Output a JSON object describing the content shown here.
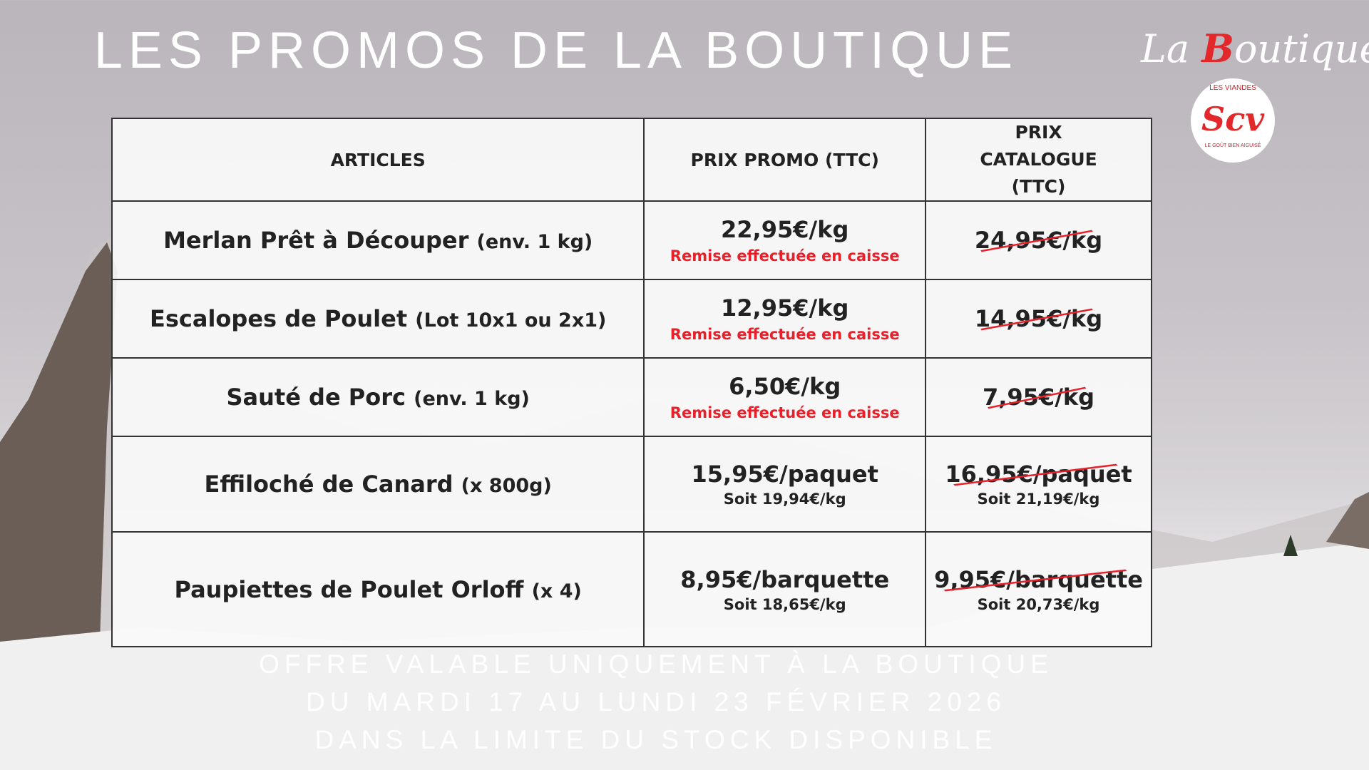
{
  "title": "LES PROMOS DE LA BOUTIQUE",
  "logo": {
    "script_prefix": "La ",
    "script_b": "B",
    "script_rest": "outique",
    "les": "LES",
    "viandes": "VIANDES",
    "brand": "Scv",
    "tagline": "LE GOÛT BIEN AIGUISÉ"
  },
  "table": {
    "headers": [
      "ARTICLES",
      "PRIX PROMO (TTC)",
      "PRIX CATALOGUE (TTC)"
    ],
    "rows": [
      {
        "name": "Merlan Prêt à Découper",
        "detail": "(env. 1 kg)",
        "promo": "22,95€/kg",
        "promo_note": "Remise effectuée en caisse",
        "catalogue": "24,95€/kg",
        "catalogue_note": ""
      },
      {
        "name": "Escalopes de Poulet",
        "detail": "(Lot 10x1 ou 2x1)",
        "promo": "12,95€/kg",
        "promo_note": "Remise effectuée en caisse",
        "catalogue": "14,95€/kg",
        "catalogue_note": ""
      },
      {
        "name": "Sauté de Porc",
        "detail": "(env. 1 kg)",
        "promo": "6,50€/kg",
        "promo_note": "Remise effectuée en caisse",
        "catalogue": "7,95€/kg",
        "catalogue_note": ""
      },
      {
        "name": "Effiloché de Canard",
        "detail": "(x 800g)",
        "promo": "15,95€/paquet",
        "promo_note": "Soit 19,94€/kg",
        "catalogue": "16,95€/paquet",
        "catalogue_note": "Soit 21,19€/kg"
      },
      {
        "name": "Paupiettes de Poulet Orloff",
        "detail": "(x 4)",
        "promo": "8,95€/barquette",
        "promo_note": "Soit 18,65€/kg",
        "catalogue": "9,95€/barquette",
        "catalogue_note": "Soit 20,73€/kg"
      }
    ]
  },
  "footer": [
    "OFFRE VALABLE UNIQUEMENT À LA BOUTIQUE",
    "DU MARDI 17 AU LUNDI 23 FÉVRIER 2026",
    "DANS LA LIMITE DU STOCK DISPONIBLE"
  ],
  "colors": {
    "accent": "#e8202a"
  }
}
